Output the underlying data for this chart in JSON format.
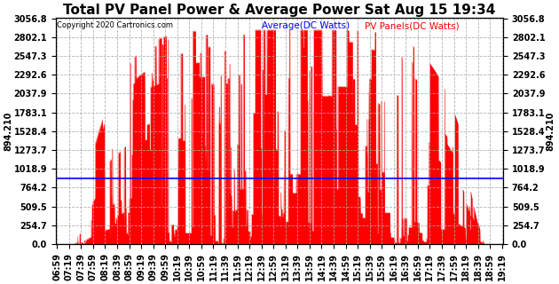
{
  "title": "Total PV Panel Power & Average Power Sat Aug 15 19:34",
  "copyright": "Copyright 2020 Cartronics.com",
  "legend_avg": "Average(DC Watts)",
  "legend_pv": "PV Panels(DC Watts)",
  "legend_avg_color": "blue",
  "legend_pv_color": "red",
  "avg_value": 894.21,
  "y_ticks": [
    0.0,
    254.7,
    509.5,
    764.2,
    1018.9,
    1273.7,
    1528.4,
    1783.1,
    2037.9,
    2292.6,
    2547.3,
    2802.1,
    3056.8
  ],
  "title_fontsize": 11,
  "tick_fontsize": 7,
  "background_color": "#ffffff",
  "plot_bg_color": "#ffffff",
  "grid_color": "#aaaaaa",
  "avg_line_color": "blue",
  "left_ylabel": "894.210",
  "right_ylabel": "894.210",
  "x_tick_labels": [
    "06:59",
    "07:19",
    "07:39",
    "07:59",
    "08:19",
    "08:39",
    "08:59",
    "09:19",
    "09:39",
    "09:59",
    "10:19",
    "10:39",
    "10:59",
    "11:19",
    "11:39",
    "11:59",
    "12:19",
    "12:39",
    "12:59",
    "13:19",
    "13:39",
    "13:59",
    "14:19",
    "14:39",
    "14:59",
    "15:19",
    "15:39",
    "15:59",
    "16:19",
    "16:39",
    "16:59",
    "17:19",
    "17:39",
    "17:59",
    "18:19",
    "18:39",
    "18:59",
    "19:19"
  ]
}
